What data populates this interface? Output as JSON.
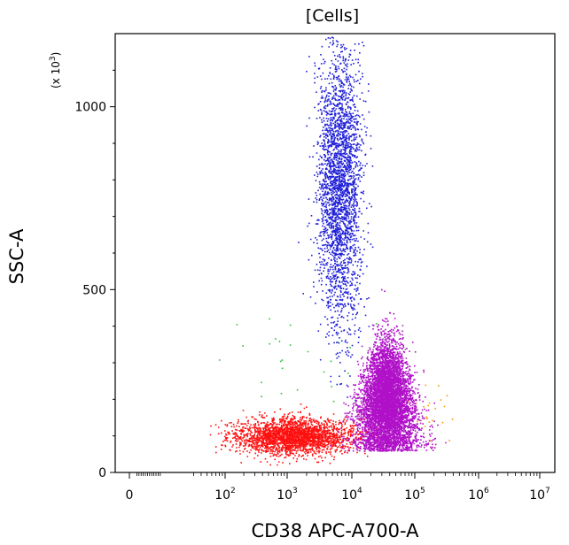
{
  "chart_data": {
    "type": "scatter",
    "title": "[Cells]",
    "xlabel": "CD38 APC-A700-A",
    "ylabel": "SSC-A",
    "y_multiplier_label": "(x 10",
    "y_multiplier_exp": "3",
    "y_multiplier_close": ")",
    "xscale": "biexponential",
    "xlim_decades": [
      0,
      7
    ],
    "ylim": [
      0,
      1200
    ],
    "y_ticks": [
      {
        "value": 0,
        "label": "0"
      },
      {
        "value": 500,
        "label": "500"
      },
      {
        "value": 1000,
        "label": "1000"
      }
    ],
    "x_ticks": [
      {
        "base": "0",
        "exp": ""
      },
      {
        "base": "10",
        "exp": "2"
      },
      {
        "base": "10",
        "exp": "3"
      },
      {
        "base": "10",
        "exp": "4"
      },
      {
        "base": "10",
        "exp": "5"
      },
      {
        "base": "10",
        "exp": "6"
      },
      {
        "base": "10",
        "exp": "7"
      }
    ],
    "grid": false,
    "populations": [
      {
        "color": "#2020d8",
        "log10_x_center": 3.8,
        "log10_x_spread": 0.17,
        "y_center": 780,
        "y_spread": 190,
        "count": 2800
      },
      {
        "color": "#b010c8",
        "log10_x_center": 4.55,
        "log10_x_spread": 0.22,
        "y_center": 190,
        "y_spread": 80,
        "count": 6000
      },
      {
        "color": "#ff1010",
        "log10_x_center": 3.1,
        "log10_x_spread": 0.45,
        "y_center": 100,
        "y_spread": 25,
        "count": 2600
      },
      {
        "color": "#30c030",
        "log10_x_center": 3.5,
        "log10_x_spread": 0.8,
        "y_center": 320,
        "y_spread": 60,
        "count": 30
      },
      {
        "color": "#ff9900",
        "log10_x_center": 5.2,
        "log10_x_spread": 0.2,
        "y_center": 160,
        "y_spread": 40,
        "count": 25
      }
    ]
  }
}
